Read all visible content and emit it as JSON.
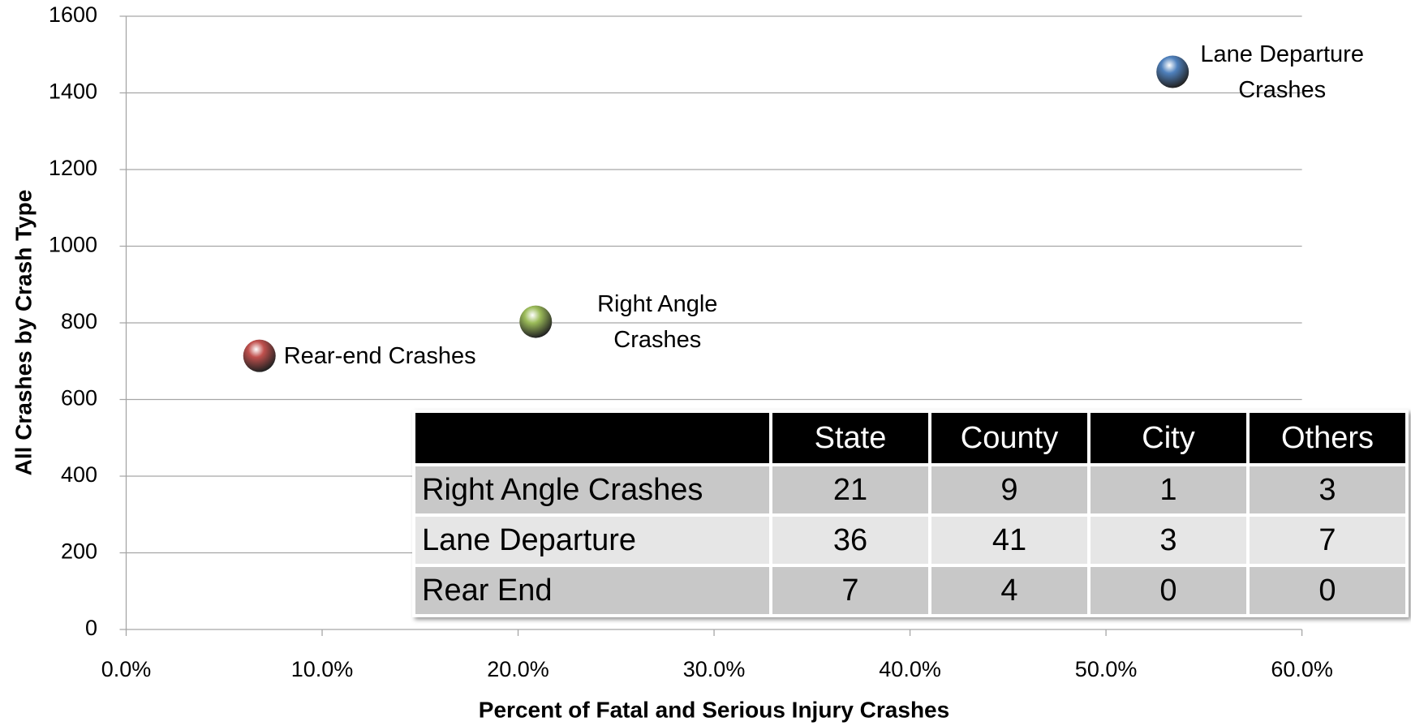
{
  "chart_data": {
    "type": "scatter",
    "xlabel": "Percent of Fatal and Serious Injury Crashes",
    "ylabel": "All Crashes by  Crash Type",
    "xlim": [
      0,
      60
    ],
    "xticks": [
      {
        "value": 0,
        "label": "0.0%"
      },
      {
        "value": 10,
        "label": "10.0%"
      },
      {
        "value": 20,
        "label": "20.0%"
      },
      {
        "value": 30,
        "label": "30.0%"
      },
      {
        "value": 40,
        "label": "40.0%"
      },
      {
        "value": 50,
        "label": "50.0%"
      },
      {
        "value": 60,
        "label": "60.0%"
      }
    ],
    "ylim": [
      0,
      1600
    ],
    "yticks": [
      0,
      200,
      400,
      600,
      800,
      1000,
      1200,
      1400,
      1600
    ],
    "grid": true,
    "series": [
      {
        "name": "Rear-end Crashes",
        "color": "#c0504d",
        "x": [
          6.8
        ],
        "values": [
          714
        ]
      },
      {
        "name": "Right Angle Crashes",
        "color": "#9bbb59",
        "x": [
          20.9
        ],
        "values": [
          803
        ]
      },
      {
        "name": "Lane Departure Crashes",
        "color": "#4f81bd",
        "x": [
          53.4
        ],
        "values": [
          1455
        ]
      }
    ]
  },
  "table": {
    "columns": [
      "State",
      "County",
      "City",
      "Others"
    ],
    "rows": [
      {
        "label": "Right Angle Crashes",
        "values": [
          21,
          9,
          1,
          3
        ]
      },
      {
        "label": "Lane Departure",
        "values": [
          36,
          41,
          3,
          7
        ]
      },
      {
        "label": "Rear End",
        "values": [
          7,
          4,
          0,
          0
        ]
      }
    ]
  }
}
